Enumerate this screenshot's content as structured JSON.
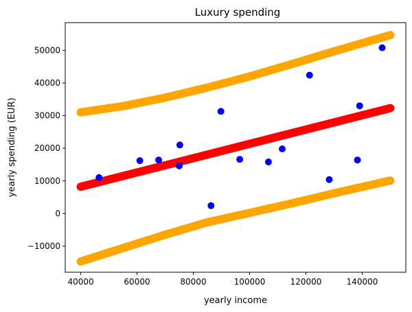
{
  "chart_data": {
    "type": "scatter",
    "title": "Luxury spending",
    "xlabel": "yearly income",
    "ylabel": "yearly spending (EUR)",
    "xlim": [
      34500,
      155500
    ],
    "ylim": [
      -18000,
      58500
    ],
    "xticks": [
      40000,
      60000,
      80000,
      100000,
      120000,
      140000
    ],
    "yticks": [
      -10000,
      0,
      10000,
      20000,
      30000,
      40000,
      50000
    ],
    "grid": false,
    "points": {
      "color": "#0000ff",
      "x": [
        46500,
        61000,
        67700,
        75000,
        75200,
        86300,
        89800,
        96500,
        106700,
        111600,
        121300,
        128300,
        138300,
        139100,
        147100
      ],
      "y": [
        11000,
        16200,
        16400,
        14600,
        21000,
        2400,
        31300,
        16600,
        15800,
        19800,
        42400,
        10400,
        16400,
        33000,
        50800
      ]
    },
    "fit_line": {
      "color": "#ff0000",
      "x": [
        40000,
        150000
      ],
      "y": [
        8200,
        32300
      ]
    },
    "upper_band": {
      "color": "#ffa500",
      "x": [
        40000,
        55000,
        70000,
        85000,
        100000,
        115000,
        130000,
        150000
      ],
      "y": [
        31000,
        32900,
        35500,
        38600,
        42000,
        45800,
        49700,
        54700
      ]
    },
    "lower_band": {
      "color": "#ffa500",
      "x": [
        40000,
        55000,
        70000,
        85000,
        100000,
        115000,
        130000,
        150000
      ],
      "y": [
        -14700,
        -10600,
        -6500,
        -2700,
        200,
        3100,
        6200,
        10100
      ]
    }
  }
}
